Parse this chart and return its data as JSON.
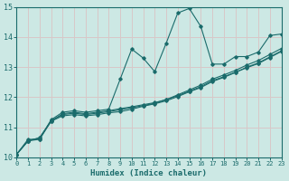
{
  "xlabel": "Humidex (Indice chaleur)",
  "bg_color": "#cce8e4",
  "line_color": "#1a6b6b",
  "grid_color": "#d8c8c8",
  "xlim": [
    0,
    23
  ],
  "ylim": [
    10,
    15
  ],
  "xticks": [
    0,
    1,
    2,
    3,
    4,
    5,
    6,
    7,
    8,
    9,
    10,
    11,
    12,
    13,
    14,
    15,
    16,
    17,
    18,
    19,
    20,
    21,
    22,
    23
  ],
  "yticks": [
    10,
    11,
    12,
    13,
    14,
    15
  ],
  "line1_y": [
    10.1,
    10.6,
    10.6,
    11.25,
    11.5,
    11.55,
    11.5,
    11.55,
    11.6,
    12.6,
    13.6,
    13.3,
    12.85,
    13.8,
    14.8,
    14.95,
    14.35,
    13.1,
    13.1,
    13.35,
    13.35,
    13.5,
    14.05,
    14.1
  ],
  "line2_y": [
    10.1,
    10.55,
    10.6,
    11.2,
    11.45,
    11.5,
    11.45,
    11.5,
    11.55,
    11.62,
    11.68,
    11.75,
    11.82,
    11.92,
    12.05,
    12.2,
    12.35,
    12.55,
    12.68,
    12.83,
    12.98,
    13.12,
    13.32,
    13.52
  ],
  "line3_y": [
    10.1,
    10.55,
    10.65,
    11.22,
    11.42,
    11.47,
    11.42,
    11.47,
    11.52,
    11.58,
    11.65,
    11.72,
    11.8,
    11.92,
    12.08,
    12.24,
    12.4,
    12.6,
    12.74,
    12.89,
    13.07,
    13.22,
    13.42,
    13.62
  ],
  "line4_y": [
    10.1,
    10.55,
    10.65,
    11.2,
    11.38,
    11.42,
    11.38,
    11.42,
    11.48,
    11.52,
    11.6,
    11.7,
    11.78,
    11.88,
    12.02,
    12.18,
    12.32,
    12.52,
    12.66,
    12.82,
    13.0,
    13.14,
    13.34,
    13.54
  ]
}
